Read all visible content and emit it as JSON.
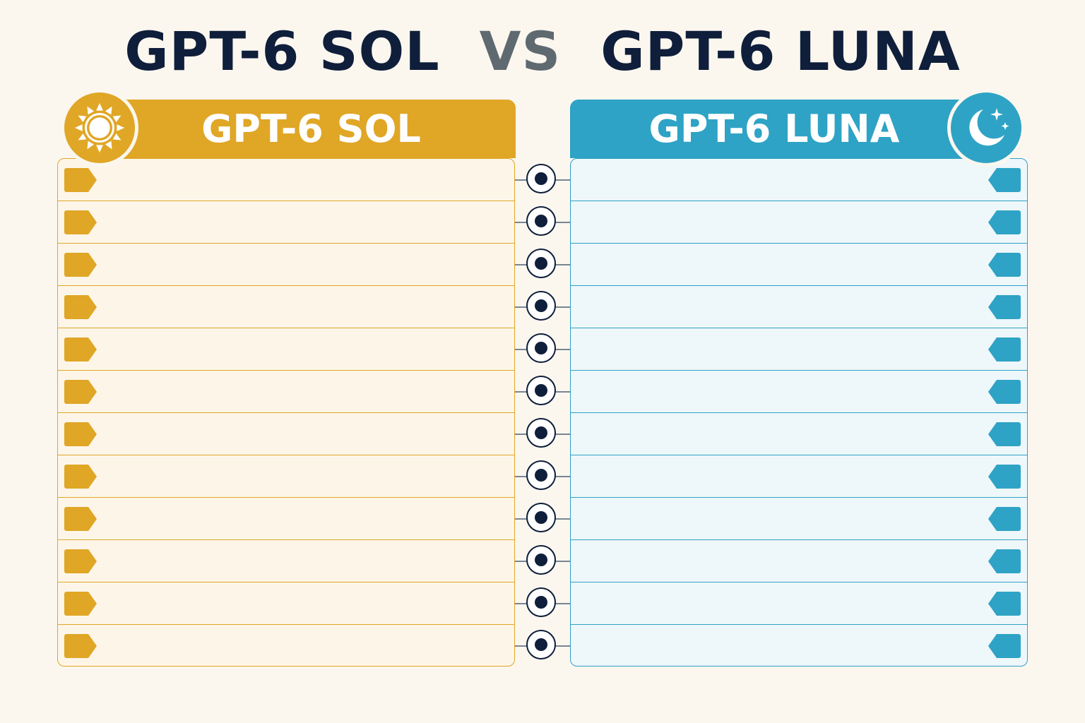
{
  "title": {
    "left": "GPT-6 SOL",
    "vs": "VS",
    "right": "GPT-6 LUNA"
  },
  "sol": {
    "label": "GPT-6 SOL",
    "icon": "sun-icon",
    "color": "#e0a626",
    "rows": [
      "",
      "",
      "",
      "",
      "",
      "",
      "",
      "",
      "",
      "",
      "",
      ""
    ]
  },
  "luna": {
    "label": "GPT-6 LUNA",
    "icon": "moon-stars-icon",
    "color": "#2ea3c5",
    "rows": [
      "",
      "",
      "",
      "",
      "",
      "",
      "",
      "",
      "",
      "",
      "",
      ""
    ]
  },
  "connector": {
    "icon": "dot-circle-icon",
    "color": "#0f1e3a",
    "count": 12
  }
}
